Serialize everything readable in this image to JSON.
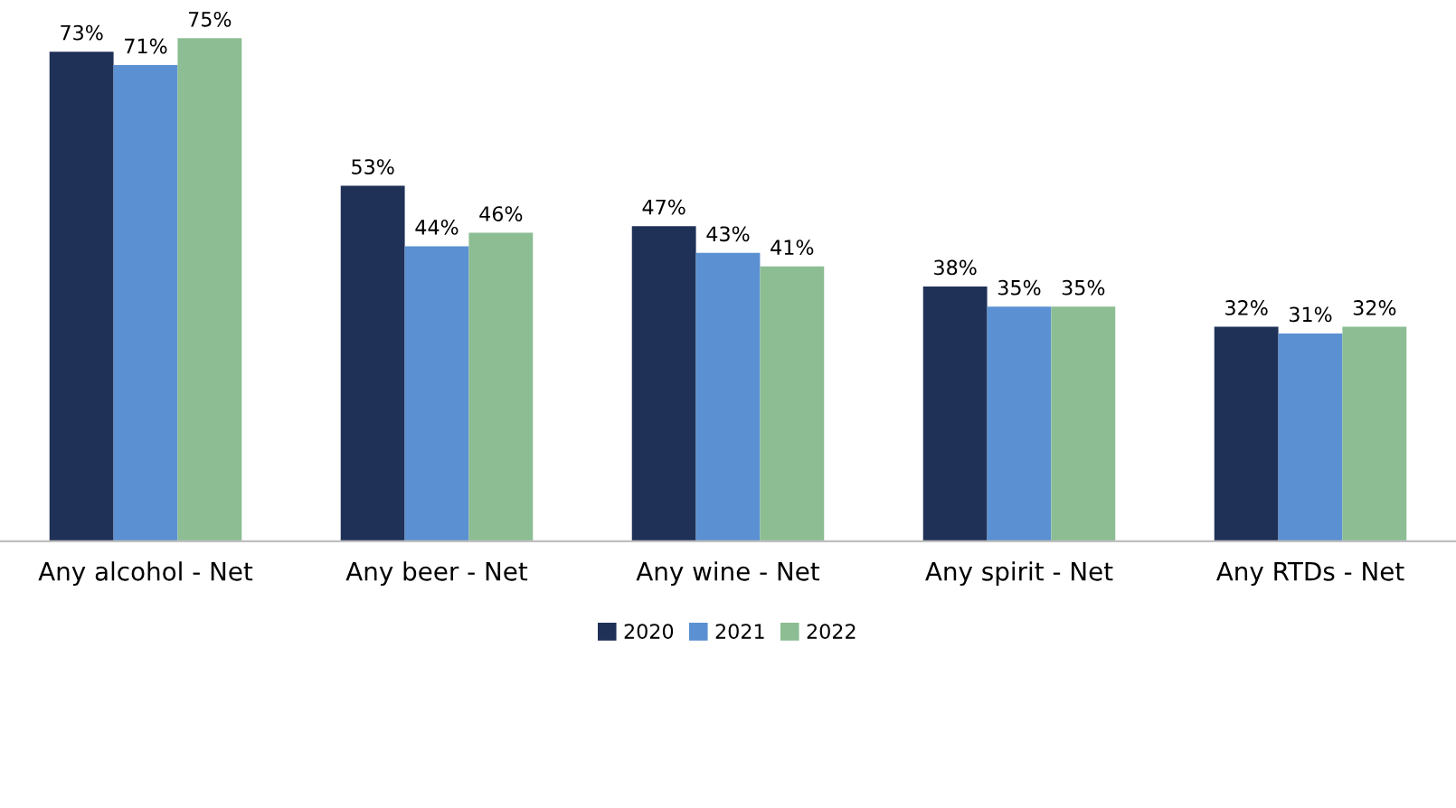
{
  "chart_data": {
    "type": "bar",
    "categories": [
      "Any alcohol - Net",
      "Any beer - Net",
      "Any wine - Net",
      "Any spirit - Net",
      "Any RTDs - Net"
    ],
    "series": [
      {
        "name": "2020",
        "color": "#1f3157",
        "values": [
          73,
          53,
          47,
          38,
          32
        ],
        "value_labels": [
          "73%",
          "53%",
          "47%",
          "38%",
          "32%"
        ]
      },
      {
        "name": "2021",
        "color": "#5b90d2",
        "values": [
          71,
          44,
          43,
          35,
          31
        ],
        "value_labels": [
          "71%",
          "44%",
          "43%",
          "35%",
          "31%"
        ]
      },
      {
        "name": "2022",
        "color": "#8cbd93",
        "values": [
          75,
          46,
          41,
          35,
          32
        ],
        "value_labels": [
          "75%",
          "46%",
          "41%",
          "35%",
          "32%"
        ]
      }
    ],
    "legend": "bottom"
  }
}
